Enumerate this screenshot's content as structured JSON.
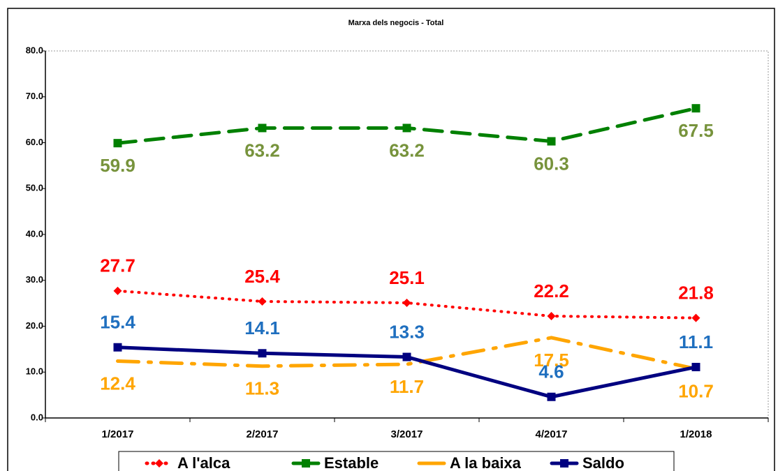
{
  "chart_data": {
    "type": "line",
    "title": "Marxa dels negocis - Total",
    "categories": [
      "1/2017",
      "2/2017",
      "3/2017",
      "4/2017",
      "1/2018"
    ],
    "series": [
      {
        "name": "A l'alca",
        "color": "#ff0000",
        "label_color": "#ff0000",
        "line_style": "dotted",
        "marker": "diamond",
        "label_position": "above",
        "values": [
          27.7,
          25.4,
          25.1,
          22.2,
          21.8
        ]
      },
      {
        "name": "Estable",
        "color": "#008000",
        "label_color": "#77933c",
        "line_style": "dashed",
        "marker": "square",
        "label_position": "below",
        "values": [
          59.9,
          63.2,
          63.2,
          60.3,
          67.5
        ]
      },
      {
        "name": "A la baixa",
        "color": "#ffa500",
        "label_color": "#ffa500",
        "line_style": "dashdot",
        "marker": "none",
        "label_position": "below",
        "values": [
          12.4,
          11.3,
          11.7,
          17.5,
          10.7
        ]
      },
      {
        "name": "Saldo",
        "color": "#000080",
        "label_color": "#1f6fbf",
        "line_style": "solid",
        "marker": "square",
        "label_position": "above",
        "values": [
          15.4,
          14.1,
          13.3,
          4.6,
          11.1
        ]
      }
    ],
    "ylim": [
      0,
      80
    ],
    "yticks": [
      {
        "value": 0,
        "label": "0.0"
      },
      {
        "value": 10,
        "label": "10.0"
      },
      {
        "value": 20,
        "label": "20.0"
      },
      {
        "value": 30,
        "label": "30.0"
      },
      {
        "value": 40,
        "label": "40.0"
      },
      {
        "value": 50,
        "label": "50.0"
      },
      {
        "value": 60,
        "label": "60.0"
      },
      {
        "value": 70,
        "label": "70.0"
      },
      {
        "value": 80,
        "label": "80.0"
      }
    ],
    "grid": false,
    "legend": "bottom"
  }
}
